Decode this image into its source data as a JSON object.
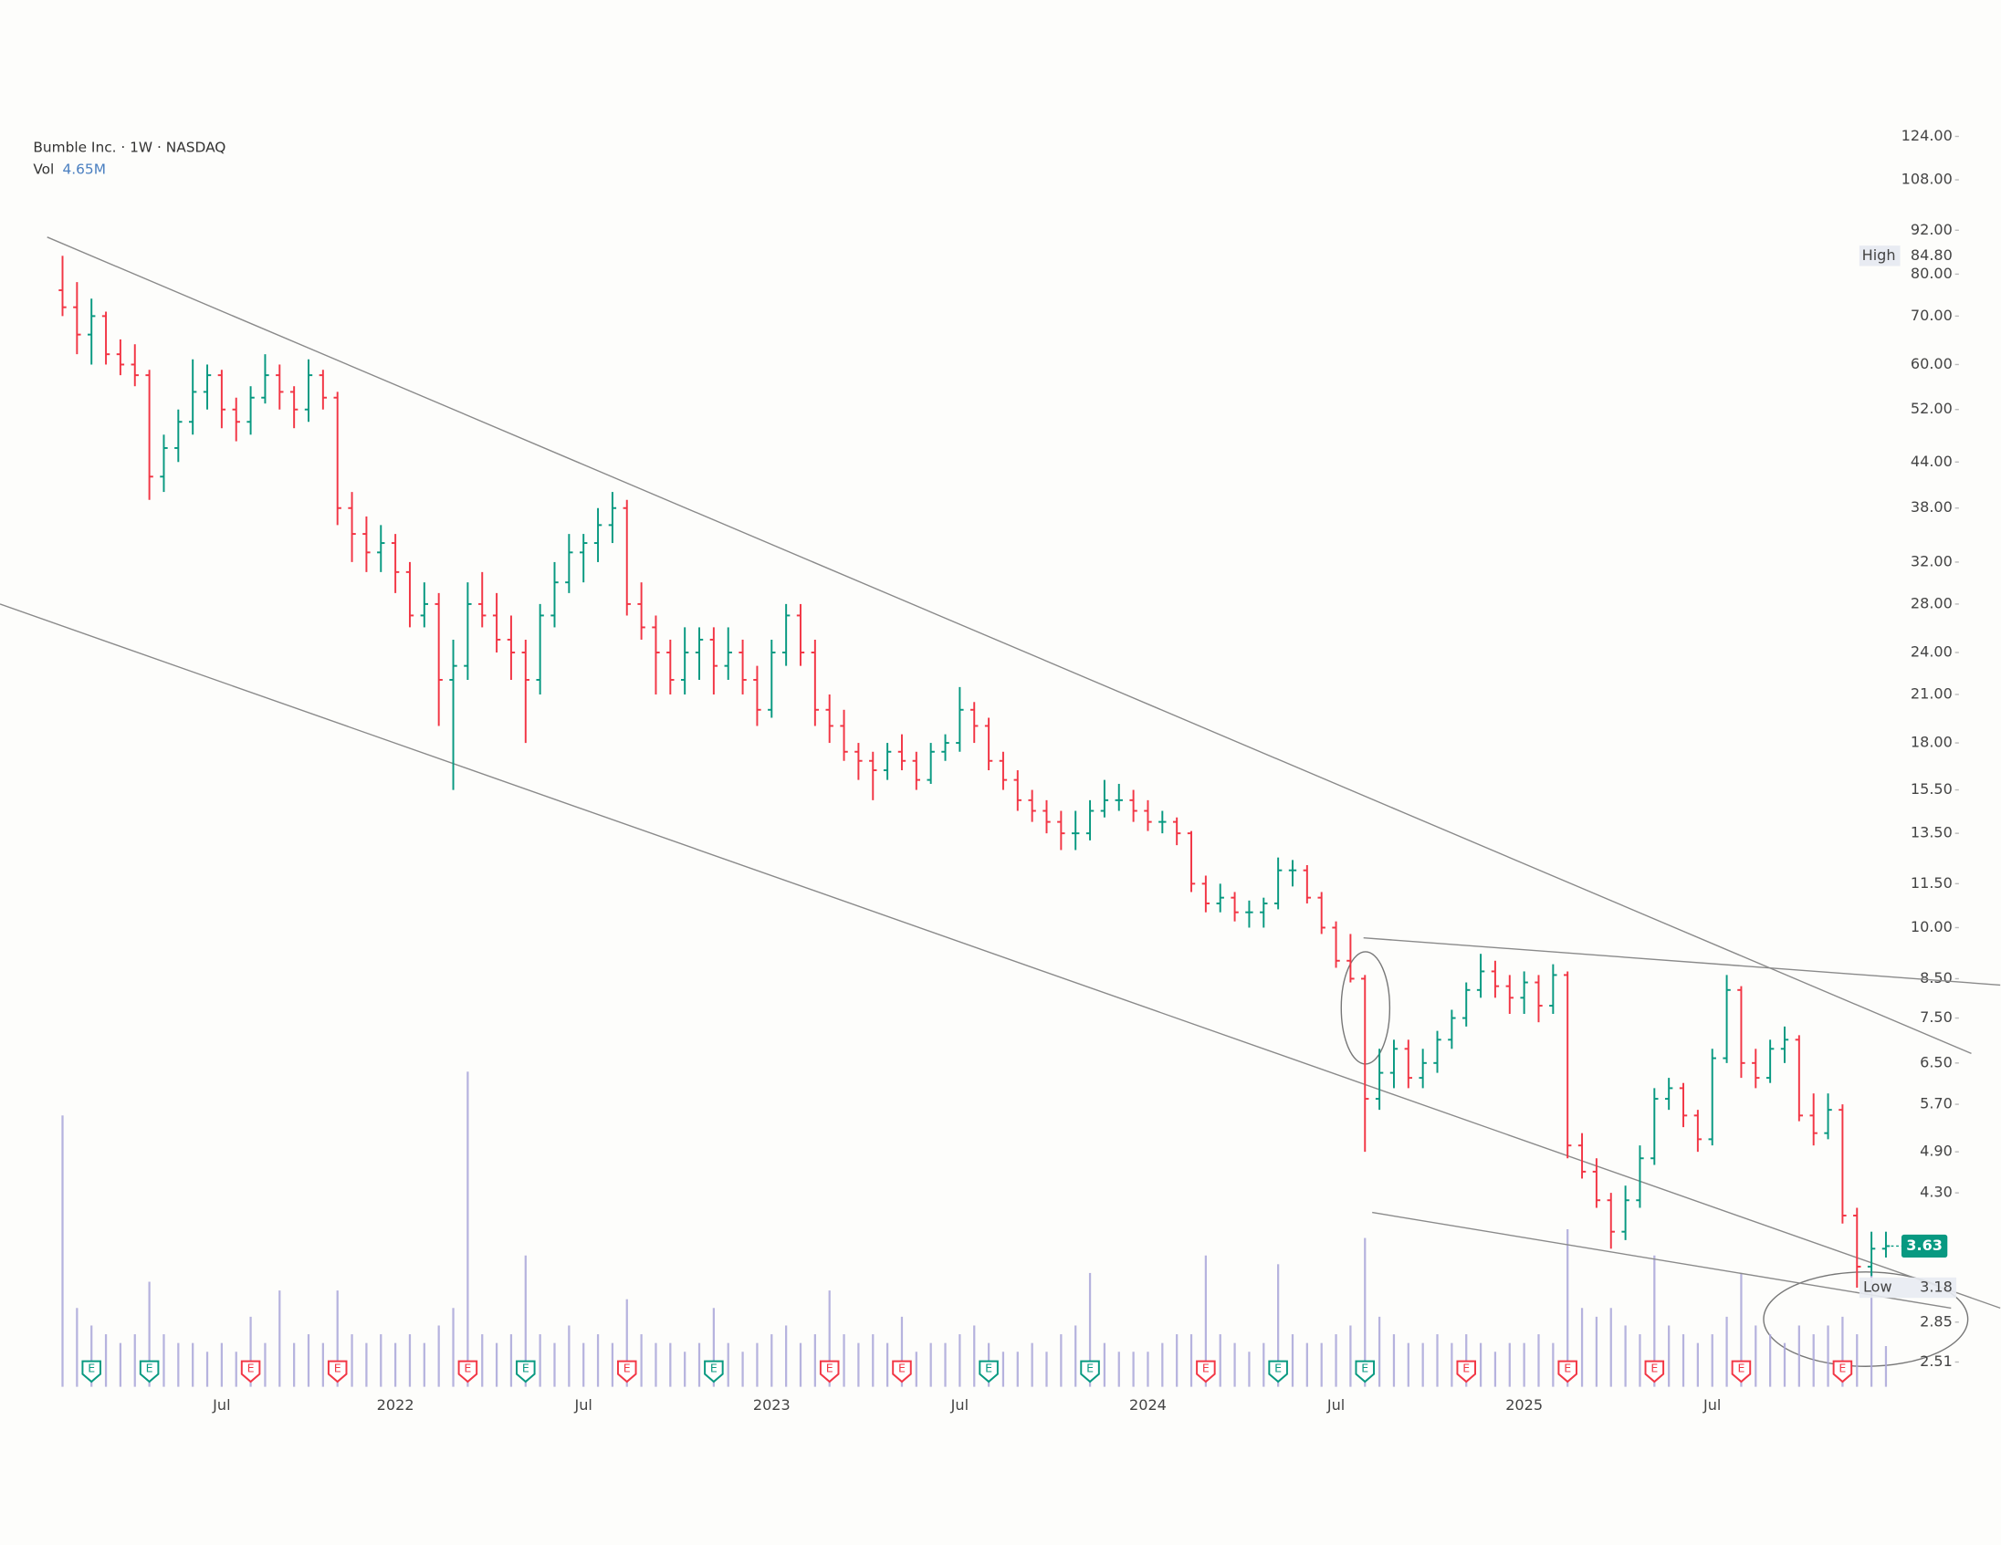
{
  "chart_data": {
    "type": "ohlc",
    "title": "Bumble Inc. · 1W · NASDAQ",
    "volume_title": "Vol",
    "volume_value_label": "4.65M",
    "log_scale": true,
    "up_color": "#089981",
    "down_color": "#f23645",
    "volume_color": "#a9a6d8",
    "trendline_color": "#8a8a8a",
    "ylim": [
      2.32,
      150
    ],
    "yticks": [
      {
        "value": 124,
        "label": "124.00"
      },
      {
        "value": 108,
        "label": "108.00"
      },
      {
        "value": 92,
        "label": "92.00"
      },
      {
        "value": 80,
        "label": "80.00"
      },
      {
        "value": 70,
        "label": "70.00"
      },
      {
        "value": 60,
        "label": "60.00"
      },
      {
        "value": 52,
        "label": "52.00"
      },
      {
        "value": 44,
        "label": "44.00"
      },
      {
        "value": 38,
        "label": "38.00"
      },
      {
        "value": 32,
        "label": "32.00"
      },
      {
        "value": 28,
        "label": "28.00"
      },
      {
        "value": 24,
        "label": "24.00"
      },
      {
        "value": 21,
        "label": "21.00"
      },
      {
        "value": 18,
        "label": "18.00"
      },
      {
        "value": 15.5,
        "label": "15.50"
      },
      {
        "value": 13.5,
        "label": "13.50"
      },
      {
        "value": 11.5,
        "label": "11.50"
      },
      {
        "value": 10,
        "label": "10.00"
      },
      {
        "value": 8.5,
        "label": "8.50"
      },
      {
        "value": 7.5,
        "label": "7.50"
      },
      {
        "value": 6.5,
        "label": "6.50"
      },
      {
        "value": 5.7,
        "label": "5.70"
      },
      {
        "value": 4.9,
        "label": "4.90"
      },
      {
        "value": 4.3,
        "label": "4.30"
      },
      {
        "value": 2.85,
        "label": "2.85"
      },
      {
        "value": 2.51,
        "label": "2.51"
      }
    ],
    "high_label": "High",
    "high": {
      "value": 84.8,
      "label": "84.80"
    },
    "low_label": "Low",
    "low": 3.18,
    "last_price": 3.63,
    "categories": [
      null,
      null,
      null,
      null,
      null,
      null,
      null,
      null,
      null,
      null,
      null,
      "Jul",
      null,
      null,
      null,
      null,
      null,
      null,
      null,
      null,
      null,
      null,
      null,
      "2022",
      null,
      null,
      null,
      null,
      null,
      null,
      null,
      null,
      null,
      null,
      null,
      null,
      "Jul",
      null,
      null,
      null,
      null,
      null,
      null,
      null,
      null,
      null,
      null,
      null,
      null,
      "2023",
      null,
      null,
      null,
      null,
      null,
      null,
      null,
      null,
      null,
      null,
      null,
      null,
      "Jul",
      null,
      null,
      null,
      null,
      null,
      null,
      null,
      null,
      null,
      null,
      null,
      null,
      "2024",
      null,
      null,
      null,
      null,
      null,
      null,
      null,
      null,
      null,
      null,
      null,
      null,
      "Jul",
      null,
      null,
      null,
      null,
      null,
      null,
      null,
      null,
      null,
      null,
      null,
      null,
      "2025",
      null,
      null,
      null,
      null,
      null,
      null,
      null,
      null,
      null,
      null,
      null,
      null,
      "Jul",
      null,
      null,
      null,
      null,
      null,
      null,
      null,
      null,
      null,
      null,
      null,
      null
    ],
    "ohlc": [
      [
        76,
        84.8,
        70,
        72
      ],
      [
        72,
        78,
        62,
        66
      ],
      [
        66,
        74,
        60,
        70
      ],
      [
        70,
        71,
        60,
        62
      ],
      [
        62,
        65,
        58,
        60
      ],
      [
        60,
        64,
        56,
        58
      ],
      [
        58,
        59,
        39,
        42
      ],
      [
        42,
        48,
        40,
        46
      ],
      [
        46,
        52,
        44,
        50
      ],
      [
        50,
        61,
        48,
        55
      ],
      [
        55,
        60,
        52,
        58
      ],
      [
        58,
        59,
        49,
        52
      ],
      [
        52,
        54,
        47,
        50
      ],
      [
        50,
        56,
        48,
        54
      ],
      [
        54,
        62,
        53,
        58
      ],
      [
        58,
        60,
        52,
        55
      ],
      [
        55,
        56,
        49,
        52
      ],
      [
        52,
        61,
        50,
        58
      ],
      [
        58,
        59,
        52,
        54
      ],
      [
        54,
        55,
        36,
        38
      ],
      [
        38,
        40,
        32,
        35
      ],
      [
        35,
        37,
        31,
        33
      ],
      [
        33,
        36,
        31,
        34
      ],
      [
        34,
        35,
        29,
        31
      ],
      [
        31,
        32,
        26,
        27
      ],
      [
        27,
        30,
        26,
        28
      ],
      [
        28,
        29,
        19,
        22
      ],
      [
        22,
        25,
        15.5,
        23
      ],
      [
        23,
        30,
        22,
        28
      ],
      [
        28,
        31,
        26,
        27
      ],
      [
        27,
        29,
        24,
        25
      ],
      [
        25,
        27,
        22,
        24
      ],
      [
        24,
        25,
        18,
        22
      ],
      [
        22,
        28,
        21,
        27
      ],
      [
        27,
        32,
        26,
        30
      ],
      [
        30,
        35,
        29,
        33
      ],
      [
        33,
        35,
        30,
        34
      ],
      [
        34,
        38,
        32,
        36
      ],
      [
        36,
        40,
        34,
        38
      ],
      [
        38,
        39,
        27,
        28
      ],
      [
        28,
        30,
        25,
        26
      ],
      [
        26,
        27,
        21,
        24
      ],
      [
        24,
        25,
        21,
        22
      ],
      [
        22,
        26,
        21,
        24
      ],
      [
        24,
        26,
        22,
        25
      ],
      [
        25,
        26,
        21,
        23
      ],
      [
        23,
        26,
        22,
        24
      ],
      [
        24,
        25,
        21,
        22
      ],
      [
        22,
        23,
        19,
        20
      ],
      [
        20,
        25,
        19.5,
        24
      ],
      [
        24,
        28,
        23,
        27
      ],
      [
        27,
        28,
        23,
        24
      ],
      [
        24,
        25,
        19,
        20
      ],
      [
        20,
        21,
        18,
        19
      ],
      [
        19,
        20,
        17,
        17.5
      ],
      [
        17.5,
        18,
        16,
        17
      ],
      [
        17,
        17.5,
        15,
        16.5
      ],
      [
        16.5,
        18,
        16,
        17.5
      ],
      [
        17.5,
        18.5,
        16.5,
        17
      ],
      [
        17,
        17.5,
        15.5,
        16
      ],
      [
        16,
        18,
        15.8,
        17.5
      ],
      [
        17.5,
        18.5,
        17,
        18
      ],
      [
        18,
        21.5,
        17.5,
        20
      ],
      [
        20,
        20.5,
        18,
        19
      ],
      [
        19,
        19.5,
        16.5,
        17
      ],
      [
        17,
        17.5,
        15.5,
        16
      ],
      [
        16,
        16.5,
        14.5,
        15
      ],
      [
        15,
        15.5,
        14,
        14.5
      ],
      [
        14.5,
        15,
        13.5,
        14
      ],
      [
        14,
        14.5,
        12.8,
        13.5
      ],
      [
        13.5,
        14.5,
        12.8,
        13.5
      ],
      [
        13.5,
        15,
        13.2,
        14.5
      ],
      [
        14.5,
        16,
        14.2,
        15
      ],
      [
        15,
        15.8,
        14.5,
        15
      ],
      [
        15,
        15.5,
        14,
        14.5
      ],
      [
        14.5,
        15,
        13.6,
        14
      ],
      [
        14,
        14.5,
        13.5,
        14
      ],
      [
        14,
        14.2,
        13,
        13.5
      ],
      [
        13.5,
        13.6,
        11.2,
        11.5
      ],
      [
        11.5,
        11.8,
        10.5,
        10.8
      ],
      [
        10.8,
        11.5,
        10.5,
        11
      ],
      [
        11,
        11.2,
        10.2,
        10.5
      ],
      [
        10.5,
        10.9,
        10,
        10.5
      ],
      [
        10.5,
        11,
        10,
        10.8
      ],
      [
        10.8,
        12.5,
        10.6,
        12
      ],
      [
        12,
        12.4,
        11.4,
        12
      ],
      [
        12,
        12.2,
        10.8,
        11
      ],
      [
        11,
        11.2,
        9.8,
        10
      ],
      [
        10,
        10.2,
        8.8,
        9
      ],
      [
        9,
        9.8,
        8.4,
        8.5
      ],
      [
        8.5,
        8.6,
        4.9,
        5.8
      ],
      [
        5.8,
        6.8,
        5.6,
        6.3
      ],
      [
        6.3,
        7,
        6,
        6.8
      ],
      [
        6.8,
        7,
        6,
        6.2
      ],
      [
        6.2,
        6.8,
        6,
        6.5
      ],
      [
        6.5,
        7.2,
        6.3,
        7
      ],
      [
        7,
        7.7,
        6.8,
        7.5
      ],
      [
        7.5,
        8.4,
        7.3,
        8.2
      ],
      [
        8.2,
        9.2,
        8,
        8.7
      ],
      [
        8.7,
        9,
        8,
        8.3
      ],
      [
        8.3,
        8.6,
        7.6,
        8
      ],
      [
        8,
        8.7,
        7.6,
        8.4
      ],
      [
        8.4,
        8.6,
        7.4,
        7.8
      ],
      [
        7.8,
        8.9,
        7.6,
        8.6
      ],
      [
        8.6,
        8.7,
        4.8,
        5
      ],
      [
        5,
        5.2,
        4.5,
        4.6
      ],
      [
        4.6,
        4.8,
        4.1,
        4.2
      ],
      [
        4.2,
        4.3,
        3.6,
        3.8
      ],
      [
        3.8,
        4.4,
        3.7,
        4.2
      ],
      [
        4.2,
        5,
        4.1,
        4.8
      ],
      [
        4.8,
        6,
        4.7,
        5.8
      ],
      [
        5.8,
        6.2,
        5.6,
        6
      ],
      [
        6,
        6.1,
        5.3,
        5.5
      ],
      [
        5.5,
        5.6,
        4.9,
        5.1
      ],
      [
        5.1,
        6.8,
        5,
        6.6
      ],
      [
        6.6,
        8.6,
        6.5,
        8.2
      ],
      [
        8.2,
        8.3,
        6.2,
        6.5
      ],
      [
        6.5,
        6.8,
        6,
        6.2
      ],
      [
        6.2,
        7,
        6.1,
        6.8
      ],
      [
        6.8,
        7.3,
        6.5,
        7
      ],
      [
        7,
        7.1,
        5.4,
        5.5
      ],
      [
        5.5,
        5.9,
        5,
        5.2
      ],
      [
        5.2,
        5.9,
        5.1,
        5.6
      ],
      [
        5.6,
        5.7,
        3.9,
        4
      ],
      [
        4,
        4.1,
        3.18,
        3.4
      ],
      [
        3.4,
        3.8,
        3.3,
        3.6
      ],
      [
        3.6,
        3.8,
        3.5,
        3.63
      ]
    ],
    "volume": [
      31,
      9,
      7,
      6,
      5,
      6,
      12,
      6,
      5,
      5,
      4,
      5,
      4,
      8,
      5,
      11,
      5,
      6,
      5,
      11,
      6,
      5,
      6,
      5,
      6,
      5,
      7,
      9,
      36,
      6,
      5,
      6,
      15,
      6,
      5,
      7,
      5,
      6,
      5,
      10,
      6,
      5,
      5,
      4,
      5,
      9,
      5,
      4,
      5,
      6,
      7,
      5,
      6,
      11,
      6,
      5,
      6,
      5,
      8,
      4,
      5,
      5,
      6,
      7,
      5,
      4,
      4,
      5,
      4,
      6,
      7,
      13,
      5,
      4,
      4,
      4,
      5,
      6,
      6,
      15,
      6,
      5,
      4,
      5,
      14,
      6,
      5,
      5,
      6,
      7,
      17,
      8,
      6,
      5,
      5,
      6,
      5,
      6,
      5,
      4,
      5,
      5,
      6,
      5,
      18,
      9,
      8,
      9,
      7,
      6,
      15,
      7,
      6,
      5,
      6,
      8,
      13,
      7,
      6,
      5,
      7,
      6,
      7,
      8,
      6,
      13,
      4.65
    ],
    "earnings": [
      {
        "at": 2,
        "label": "E",
        "color": "#089981"
      },
      {
        "at": 6,
        "label": "E",
        "color": "#089981"
      },
      {
        "at": 13,
        "label": "E",
        "color": "#f23645"
      },
      {
        "at": 19,
        "label": "E",
        "color": "#f23645"
      },
      {
        "at": 28,
        "label": "E",
        "color": "#f23645"
      },
      {
        "at": 32,
        "label": "E",
        "color": "#089981"
      },
      {
        "at": 39,
        "label": "E",
        "color": "#f23645"
      },
      {
        "at": 45,
        "label": "E",
        "color": "#089981"
      },
      {
        "at": 53,
        "label": "E",
        "color": "#f23645"
      },
      {
        "at": 58,
        "label": "E",
        "color": "#f23645"
      },
      {
        "at": 64,
        "label": "E",
        "color": "#089981"
      },
      {
        "at": 71,
        "label": "E",
        "color": "#089981"
      },
      {
        "at": 79,
        "label": "E",
        "color": "#f23645"
      },
      {
        "at": 84,
        "label": "E",
        "color": "#089981"
      },
      {
        "at": 90,
        "label": "E",
        "color": "#089981"
      },
      {
        "at": 97,
        "label": "E",
        "color": "#f23645"
      },
      {
        "at": 104,
        "label": "E",
        "color": "#f23645"
      },
      {
        "at": 110,
        "label": "E",
        "color": "#f23645"
      },
      {
        "at": 116,
        "label": "E",
        "color": "#f23645"
      },
      {
        "at": 123,
        "label": "E",
        "color": "#f23645"
      }
    ],
    "trendlines": [
      {
        "from": [
          -1.06,
          90
        ],
        "to": [
          131.9,
          6.7
        ]
      },
      {
        "from": [
          -4.32,
          28
        ],
        "to": [
          133.9,
          2.98
        ]
      },
      {
        "from": [
          89.9,
          9.68
        ],
        "to": [
          133.9,
          8.33
        ]
      },
      {
        "from": [
          90.5,
          4.04
        ],
        "to": [
          130.5,
          2.98
        ]
      }
    ]
  }
}
